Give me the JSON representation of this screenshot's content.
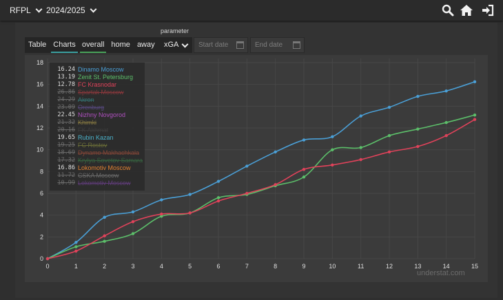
{
  "header": {
    "league": "RFPL",
    "season": "2024/2025",
    "icons": [
      "search-icon",
      "home-icon",
      "sign-in-icon"
    ]
  },
  "controls": {
    "view_tabs": [
      {
        "label": "Table",
        "active": false
      },
      {
        "label": "Charts",
        "active": true
      }
    ],
    "venue_tabs": [
      {
        "label": "overall",
        "active": true
      },
      {
        "label": "home",
        "active": false
      },
      {
        "label": "away",
        "active": false
      }
    ],
    "parameter_label": "parameter",
    "parameter_value": "xGA",
    "start_placeholder": "Start date",
    "end_placeholder": "End date"
  },
  "chart_data": {
    "type": "line",
    "x": [
      0,
      1,
      2,
      3,
      4,
      5,
      6,
      7,
      8,
      9,
      10,
      11,
      12,
      13,
      14,
      15
    ],
    "xlim": [
      0,
      15
    ],
    "ylim": [
      0,
      18
    ],
    "xticks": [
      0,
      1,
      2,
      3,
      4,
      5,
      6,
      7,
      8,
      9,
      10,
      11,
      12,
      13,
      14,
      15
    ],
    "yticks": [
      0,
      2,
      4,
      6,
      8,
      10,
      12,
      14,
      16,
      18
    ],
    "grid": true,
    "legend_position": "top-left",
    "series": [
      {
        "name": "Dinamo Moscow",
        "color": "#4a9fd6",
        "values": [
          0,
          1.5,
          3.8,
          4.3,
          5.4,
          5.9,
          7.1,
          8.5,
          9.8,
          10.9,
          11.2,
          13.1,
          13.9,
          14.9,
          15.4,
          16.24
        ]
      },
      {
        "name": "Zenit St. Petersburg",
        "color": "#5cbf6a",
        "values": [
          0,
          1.1,
          1.6,
          2.3,
          3.9,
          4.2,
          5.6,
          5.9,
          6.7,
          7.5,
          10.0,
          10.2,
          11.3,
          11.9,
          12.5,
          13.19
        ]
      },
      {
        "name": "FC Krasnodar",
        "color": "#e0425a",
        "values": [
          0,
          0.7,
          2.1,
          3.4,
          4.1,
          4.2,
          5.3,
          6.0,
          6.8,
          8.2,
          8.6,
          9.1,
          9.8,
          10.3,
          11.3,
          12.78
        ]
      }
    ],
    "legend": [
      {
        "value": "16.24",
        "name": "Dinamo Moscow",
        "color": "#4a9fd6",
        "hidden": false
      },
      {
        "value": "13.19",
        "name": "Zenit St. Petersburg",
        "color": "#5cbf6a",
        "hidden": false
      },
      {
        "value": "12.78",
        "name": "FC Krasnodar",
        "color": "#e0425a",
        "hidden": false
      },
      {
        "value": "26.86",
        "name": "Spartak Moscow",
        "color": "#d9424a",
        "hidden": true
      },
      {
        "value": "24.29",
        "name": "Akron",
        "color": "#3aa6a6",
        "hidden": true
      },
      {
        "value": "23.09",
        "name": "Orenburg",
        "color": "#7a5fc0",
        "hidden": true
      },
      {
        "value": "22.45",
        "name": "Nizhny Novgorod",
        "color": "#b050c0",
        "hidden": false
      },
      {
        "value": "21.32",
        "name": "Khimki",
        "color": "#c8b050",
        "hidden": true
      },
      {
        "value": "20.16",
        "name": "FK Akhmat",
        "color": "#4a4a4a",
        "hidden": true
      },
      {
        "value": "19.65",
        "name": "Rubin Kazan",
        "color": "#4ab0c8",
        "hidden": false
      },
      {
        "value": "19.25",
        "name": "FC Rostov",
        "color": "#9aa040",
        "hidden": true
      },
      {
        "value": "18.69",
        "name": "Dynamo Makhachkala",
        "color": "#c85a40",
        "hidden": true
      },
      {
        "value": "17.32",
        "name": "Krylya Sovetov Samara",
        "color": "#3f8f4f",
        "hidden": true
      },
      {
        "value": "16.86",
        "name": "Lokomotiv Moscow",
        "color": "#e08030",
        "hidden": false
      },
      {
        "value": "11.72",
        "name": "CSKA Moscow",
        "color": "#9a9a9a",
        "hidden": true
      },
      {
        "value": "10.99",
        "name": "Lokomotiv Moscow",
        "color": "#8a4ab8",
        "hidden": true
      }
    ]
  },
  "watermark": "understat.com"
}
